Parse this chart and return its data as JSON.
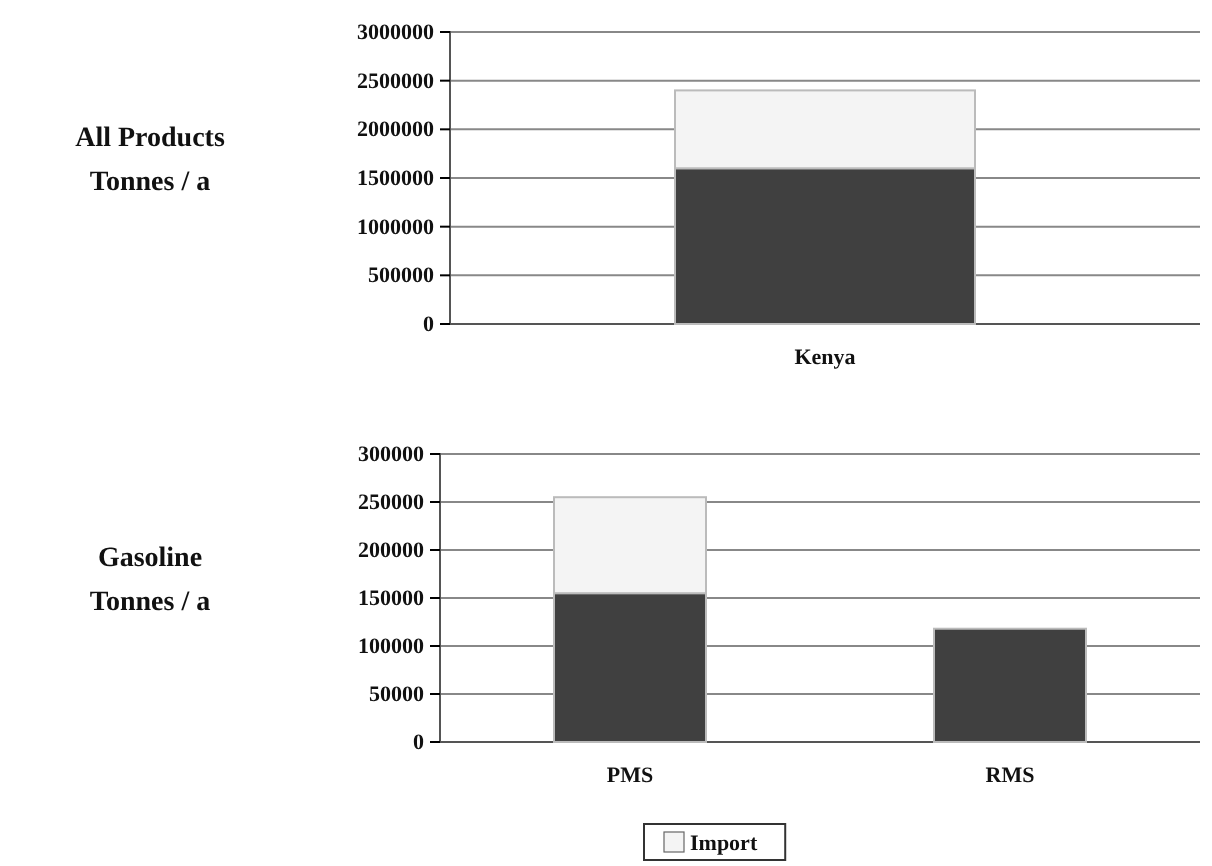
{
  "chart_data": [
    {
      "type": "bar",
      "stacked": true,
      "ylabel": "All Products Tonnes / a",
      "categories": [
        "Kenya"
      ],
      "series": [
        {
          "color": "#404040",
          "values": [
            1600000
          ]
        },
        {
          "color": "#f4f4f4",
          "values": [
            800000
          ]
        }
      ],
      "ylim": [
        0,
        3000000
      ],
      "yticks": [
        0,
        500000,
        1000000,
        1500000,
        2000000,
        2500000,
        3000000
      ],
      "grid": "y"
    },
    {
      "type": "bar",
      "stacked": true,
      "ylabel": "Gasoline Tonnes / a",
      "categories": [
        "PMS",
        "RMS"
      ],
      "series": [
        {
          "color": "#404040",
          "values": [
            155000,
            118000
          ]
        },
        {
          "name": "Import",
          "color": "#f4f4f4",
          "values": [
            100000,
            null
          ]
        }
      ],
      "ylim": [
        0,
        300000
      ],
      "yticks": [
        0,
        50000,
        100000,
        150000,
        200000,
        250000,
        300000
      ],
      "grid": "y",
      "legend": "bottom"
    }
  ]
}
